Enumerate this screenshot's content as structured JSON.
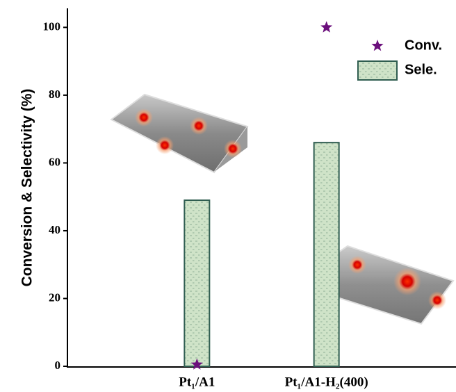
{
  "chart_data": {
    "type": "bar",
    "y_label": "Conversion & Selectivity (%)",
    "categories": [
      "Pt₁/A1",
      "Pt₁/A1-H₂(400)"
    ],
    "series": [
      {
        "name": "Sele.",
        "type": "bar",
        "color": "#cfe3c8",
        "values": [
          49,
          66
        ]
      },
      {
        "name": "Conv.",
        "type": "scatter",
        "color": "#6b0f7c",
        "values": [
          0.5,
          100
        ]
      }
    ],
    "ylim": [
      0,
      105
    ],
    "yticks": [
      0,
      20,
      40,
      60,
      80,
      100
    ]
  }
}
